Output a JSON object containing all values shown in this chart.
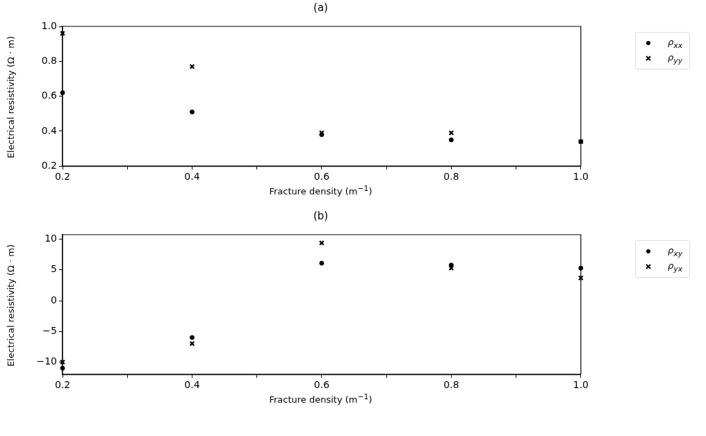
{
  "chart_data": [
    {
      "type": "scatter",
      "title": "(a)",
      "xlabel": "Fracture density (m$^{−1}$)",
      "ylabel": "Electrical resistivity (Ω · m)",
      "x": [
        0.2,
        0.4,
        0.6,
        0.8,
        1.0
      ],
      "series": [
        {
          "name": "ρ$_{xx}$",
          "color": "#000000",
          "marker": "circle",
          "values": [
            0.62,
            0.51,
            0.38,
            0.35,
            0.34
          ]
        },
        {
          "name": "ρ$_{yy}$",
          "color": "#000000",
          "marker": "cross",
          "values": [
            0.96,
            0.77,
            0.39,
            0.39,
            0.34
          ]
        }
      ],
      "xlim": [
        0.2,
        1.0
      ],
      "xticks": [
        0.2,
        {
          "value": 0.3,
          "label": null
        },
        0.4,
        {
          "value": 0.5,
          "label": null
        },
        0.6,
        {
          "value": 0.7,
          "label": null
        },
        0.8,
        {
          "value": 0.9,
          "label": null
        },
        {
          "value": 1,
          "label": "1.0"
        }
      ],
      "ylim": [
        0.2,
        1.0
      ],
      "yticks": [
        0.2,
        0.4,
        0.6,
        0.8,
        {
          "value": 1,
          "label": "1.0"
        }
      ],
      "grid": false,
      "legend": "top right"
    },
    {
      "type": "scatter",
      "title": "(b)",
      "xlabel": "Fracture density (m$^{−1}$)",
      "ylabel": "Electrical resistivity (Ω · m)",
      "x": [
        0.2,
        0.4,
        0.6,
        0.8,
        1.0
      ],
      "series": [
        {
          "name": "ρ$_{xy}$",
          "color": "#000000",
          "marker": "circle",
          "values": [
            -11,
            -6,
            6.1,
            5.8,
            5.3
          ]
        },
        {
          "name": "ρ$_{yx}$",
          "color": "#000000",
          "marker": "cross",
          "values": [
            -10,
            -7,
            9.4,
            5.3,
            3.7
          ]
        }
      ],
      "xlim": [
        0.2,
        1.0
      ],
      "xticks": [
        0.2,
        {
          "value": 0.3,
          "label": null
        },
        0.4,
        {
          "value": 0.5,
          "label": null
        },
        0.6,
        {
          "value": 0.7,
          "label": null
        },
        0.8,
        {
          "value": 0.9,
          "label": null
        },
        {
          "value": 1,
          "label": "1.0"
        }
      ],
      "ylim": [
        -12,
        10.75
      ],
      "yticks": [
        -10,
        -5,
        0,
        5,
        10
      ],
      "grid": false,
      "legend": "top right"
    }
  ]
}
